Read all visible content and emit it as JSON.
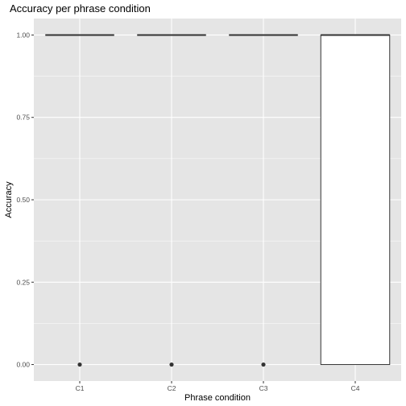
{
  "chart_data": {
    "type": "boxplot",
    "title": "Accuracy per phrase condition",
    "xlabel": "Phrase condition",
    "ylabel": "Accuracy",
    "categories": [
      "C1",
      "C2",
      "C3",
      "C4"
    ],
    "ylim": [
      -0.05,
      1.05
    ],
    "yticks": [
      0.0,
      0.25,
      0.5,
      0.75,
      1.0
    ],
    "ytick_labels": [
      "0.00",
      "0.25",
      "0.50",
      "0.75",
      "1.00"
    ],
    "grid": true,
    "legend": "none",
    "boxes": [
      {
        "category": "C1",
        "q1": 1.0,
        "median": 1.0,
        "q3": 1.0,
        "whisker_low": 1.0,
        "whisker_high": 1.0,
        "outliers": [
          0.0
        ]
      },
      {
        "category": "C2",
        "q1": 1.0,
        "median": 1.0,
        "q3": 1.0,
        "whisker_low": 1.0,
        "whisker_high": 1.0,
        "outliers": [
          0.0
        ]
      },
      {
        "category": "C3",
        "q1": 1.0,
        "median": 1.0,
        "q3": 1.0,
        "whisker_low": 1.0,
        "whisker_high": 1.0,
        "outliers": [
          0.0
        ]
      },
      {
        "category": "C4",
        "q1": 0.0,
        "median": 1.0,
        "q3": 1.0,
        "whisker_low": 0.0,
        "whisker_high": 1.0,
        "outliers": []
      }
    ],
    "colors": {
      "panel_background": "#e5e5e5",
      "grid": "#ffffff",
      "box_fill": "#ffffff",
      "box_line": "#333333",
      "outlier": "#333333",
      "tick_label": "#4d4d4d",
      "tick_mark": "#333333"
    }
  }
}
